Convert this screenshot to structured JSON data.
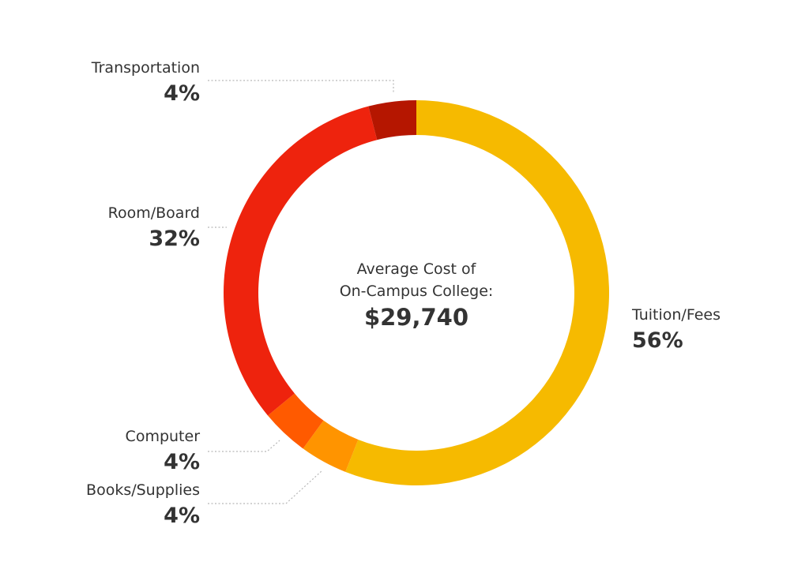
{
  "chart_data": {
    "type": "pie",
    "center_text": {
      "line1": "Average Cost of",
      "line2": "On-Campus College:",
      "total": "$29,740"
    },
    "slices": [
      {
        "label": "Tuition/Fees",
        "value": 56,
        "value_label": "56%",
        "color": "#F6BA00"
      },
      {
        "label": "Books/Supplies",
        "value": 4,
        "value_label": "4%",
        "color": "#FF9400"
      },
      {
        "label": "Computer",
        "value": 4,
        "value_label": "4%",
        "color": "#FF5A00"
      },
      {
        "label": "Room/Board",
        "value": 32,
        "value_label": "32%",
        "color": "#EE230D"
      },
      {
        "label": "Transportation",
        "value": 4,
        "value_label": "4%",
        "color": "#B51600"
      }
    ]
  }
}
